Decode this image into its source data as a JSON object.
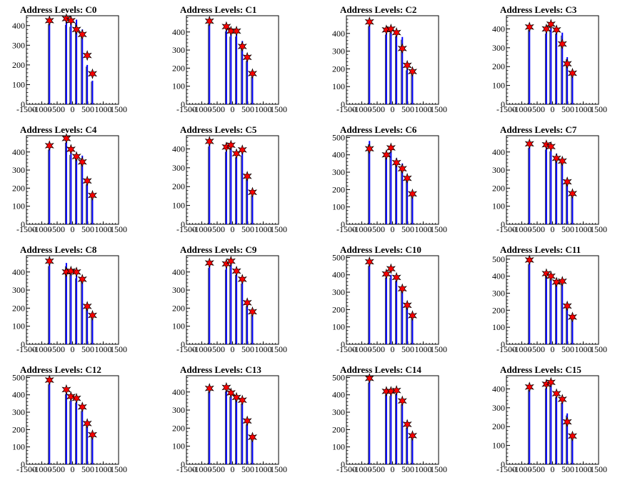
{
  "chart_data": {
    "type": "bar",
    "layout": "4x4 small multiples",
    "xlim": [
      -1500,
      1500
    ],
    "xticks": [
      -1500,
      -1000,
      -500,
      0,
      500,
      1000,
      1500
    ],
    "series_color": "#0000ff",
    "marker": "red-star",
    "marker_color": "#ff0000",
    "x_levels": [
      -750,
      -200,
      -50,
      130,
      320,
      480,
      650
    ],
    "charts": [
      {
        "title": "Address Levels: C0",
        "ylim": [
          0,
          450
        ],
        "yticks": [
          0,
          100,
          200,
          300,
          400
        ],
        "stars": [
          425,
          435,
          425,
          380,
          355,
          248,
          155
        ],
        "bars": [
          [
            -750,
            425
          ],
          [
            -200,
            420
          ],
          [
            -50,
            410
          ],
          [
            130,
            430
          ],
          [
            320,
            380
          ],
          [
            480,
            200
          ],
          [
            650,
            120
          ]
        ]
      },
      {
        "title": "Address Levels: C1",
        "ylim": [
          0,
          490
        ],
        "yticks": [
          0,
          100,
          200,
          300,
          400
        ],
        "stars": [
          460,
          430,
          405,
          405,
          320,
          260,
          170
        ],
        "bars": [
          [
            -750,
            460
          ],
          [
            -200,
            420
          ],
          [
            -50,
            390
          ],
          [
            130,
            390
          ],
          [
            320,
            350
          ],
          [
            480,
            250
          ],
          [
            650,
            160
          ]
        ]
      },
      {
        "title": "Address Levels: C2",
        "ylim": [
          0,
          500
        ],
        "yticks": [
          0,
          100,
          200,
          300,
          400
        ],
        "stars": [
          465,
          420,
          425,
          405,
          315,
          220,
          185
        ],
        "bars": [
          [
            -750,
            460
          ],
          [
            -200,
            410
          ],
          [
            -50,
            420
          ],
          [
            130,
            400
          ],
          [
            320,
            380
          ],
          [
            480,
            200
          ],
          [
            650,
            180
          ]
        ]
      },
      {
        "title": "Address Levels: C3",
        "ylim": [
          0,
          470
        ],
        "yticks": [
          0,
          100,
          200,
          300,
          400
        ],
        "stars": [
          410,
          400,
          425,
          395,
          320,
          215,
          165
        ],
        "bars": [
          [
            -750,
            410
          ],
          [
            -200,
            390
          ],
          [
            -50,
            410
          ],
          [
            130,
            390
          ],
          [
            320,
            380
          ],
          [
            480,
            250
          ],
          [
            650,
            160
          ]
        ]
      },
      {
        "title": "Address Levels: C4",
        "ylim": [
          0,
          490
        ],
        "yticks": [
          0,
          100,
          200,
          300,
          400
        ],
        "stars": [
          435,
          475,
          415,
          375,
          345,
          240,
          160
        ],
        "bars": [
          [
            -750,
            430
          ],
          [
            -200,
            470
          ],
          [
            -50,
            400
          ],
          [
            130,
            390
          ],
          [
            320,
            380
          ],
          [
            480,
            230
          ],
          [
            650,
            160
          ]
        ]
      },
      {
        "title": "Address Levels: C5",
        "ylim": [
          0,
          470
        ],
        "yticks": [
          0,
          100,
          200,
          300,
          400
        ],
        "stars": [
          440,
          410,
          420,
          375,
          395,
          255,
          170
        ],
        "bars": [
          [
            -750,
            430
          ],
          [
            -200,
            400
          ],
          [
            -50,
            420
          ],
          [
            130,
            370
          ],
          [
            320,
            380
          ],
          [
            480,
            250
          ],
          [
            650,
            160
          ]
        ]
      },
      {
        "title": "Address Levels: C6",
        "ylim": [
          0,
          510
        ],
        "yticks": [
          0,
          100,
          200,
          300,
          400,
          500
        ],
        "stars": [
          435,
          400,
          440,
          355,
          320,
          265,
          175
        ],
        "bars": [
          [
            -750,
            480
          ],
          [
            -200,
            400
          ],
          [
            -50,
            430
          ],
          [
            130,
            380
          ],
          [
            320,
            350
          ],
          [
            480,
            270
          ],
          [
            650,
            170
          ]
        ]
      },
      {
        "title": "Address Levels: C7",
        "ylim": [
          0,
          490
        ],
        "yticks": [
          0,
          100,
          200,
          300,
          400
        ],
        "stars": [
          445,
          440,
          430,
          365,
          350,
          235,
          170
        ],
        "bars": [
          [
            -750,
            440
          ],
          [
            -200,
            430
          ],
          [
            -50,
            420
          ],
          [
            130,
            390
          ],
          [
            320,
            370
          ],
          [
            480,
            240
          ],
          [
            650,
            170
          ]
        ]
      },
      {
        "title": "Address Levels: C8",
        "ylim": [
          0,
          490
        ],
        "yticks": [
          0,
          100,
          200,
          300,
          400
        ],
        "stars": [
          460,
          400,
          405,
          400,
          360,
          210,
          160
        ],
        "bars": [
          [
            -750,
            450
          ],
          [
            -200,
            450
          ],
          [
            -50,
            400
          ],
          [
            130,
            380
          ],
          [
            320,
            370
          ],
          [
            480,
            220
          ],
          [
            650,
            160
          ]
        ]
      },
      {
        "title": "Address Levels: C9",
        "ylim": [
          0,
          490
        ],
        "yticks": [
          0,
          100,
          200,
          300,
          400
        ],
        "stars": [
          450,
          445,
          460,
          405,
          360,
          230,
          180
        ],
        "bars": [
          [
            -750,
            440
          ],
          [
            -200,
            430
          ],
          [
            -50,
            450
          ],
          [
            130,
            400
          ],
          [
            320,
            350
          ],
          [
            480,
            220
          ],
          [
            650,
            170
          ]
        ]
      },
      {
        "title": "Address Levels: C10",
        "ylim": [
          0,
          510
        ],
        "yticks": [
          0,
          100,
          200,
          300,
          400,
          500
        ],
        "stars": [
          475,
          405,
          435,
          385,
          320,
          225,
          165
        ],
        "bars": [
          [
            -750,
            470
          ],
          [
            -200,
            400
          ],
          [
            -50,
            400
          ],
          [
            130,
            380
          ],
          [
            320,
            320
          ],
          [
            480,
            220
          ],
          [
            650,
            160
          ]
        ]
      },
      {
        "title": "Address Levels: C11",
        "ylim": [
          0,
          520
        ],
        "yticks": [
          0,
          100,
          200,
          300,
          400,
          500
        ],
        "stars": [
          495,
          415,
          400,
          365,
          370,
          225,
          160
        ],
        "bars": [
          [
            -750,
            490
          ],
          [
            -200,
            420
          ],
          [
            -50,
            400
          ],
          [
            130,
            370
          ],
          [
            320,
            370
          ],
          [
            480,
            230
          ],
          [
            650,
            160
          ]
        ]
      },
      {
        "title": "Address Levels: C12",
        "ylim": [
          0,
          510
        ],
        "yticks": [
          0,
          100,
          200,
          300,
          400,
          500
        ],
        "stars": [
          485,
          430,
          390,
          380,
          330,
          235,
          170
        ],
        "bars": [
          [
            -750,
            480
          ],
          [
            -200,
            420
          ],
          [
            -50,
            380
          ],
          [
            130,
            370
          ],
          [
            320,
            320
          ],
          [
            480,
            230
          ],
          [
            650,
            170
          ]
        ]
      },
      {
        "title": "Address Levels: C13",
        "ylim": [
          0,
          490
        ],
        "yticks": [
          0,
          100,
          200,
          300,
          400
        ],
        "stars": [
          420,
          425,
          395,
          370,
          355,
          240,
          150
        ],
        "bars": [
          [
            -750,
            420
          ],
          [
            -200,
            420
          ],
          [
            -50,
            390
          ],
          [
            130,
            380
          ],
          [
            320,
            350
          ],
          [
            480,
            230
          ],
          [
            650,
            150
          ]
        ]
      },
      {
        "title": "Address Levels: C14",
        "ylim": [
          0,
          510
        ],
        "yticks": [
          0,
          100,
          200,
          300,
          400,
          500
        ],
        "stars": [
          495,
          420,
          420,
          425,
          365,
          230,
          165
        ],
        "bars": [
          [
            -750,
            490
          ],
          [
            -200,
            420
          ],
          [
            -50,
            410
          ],
          [
            130,
            420
          ],
          [
            320,
            360
          ],
          [
            480,
            220
          ],
          [
            650,
            160
          ]
        ]
      },
      {
        "title": "Address Levels: C15",
        "ylim": [
          0,
          470
        ],
        "yticks": [
          0,
          100,
          200,
          300,
          400
        ],
        "stars": [
          410,
          425,
          435,
          375,
          345,
          225,
          150
        ],
        "bars": [
          [
            -750,
            410
          ],
          [
            -200,
            420
          ],
          [
            -50,
            430
          ],
          [
            130,
            370
          ],
          [
            320,
            340
          ],
          [
            480,
            270
          ],
          [
            650,
            150
          ]
        ]
      }
    ]
  }
}
